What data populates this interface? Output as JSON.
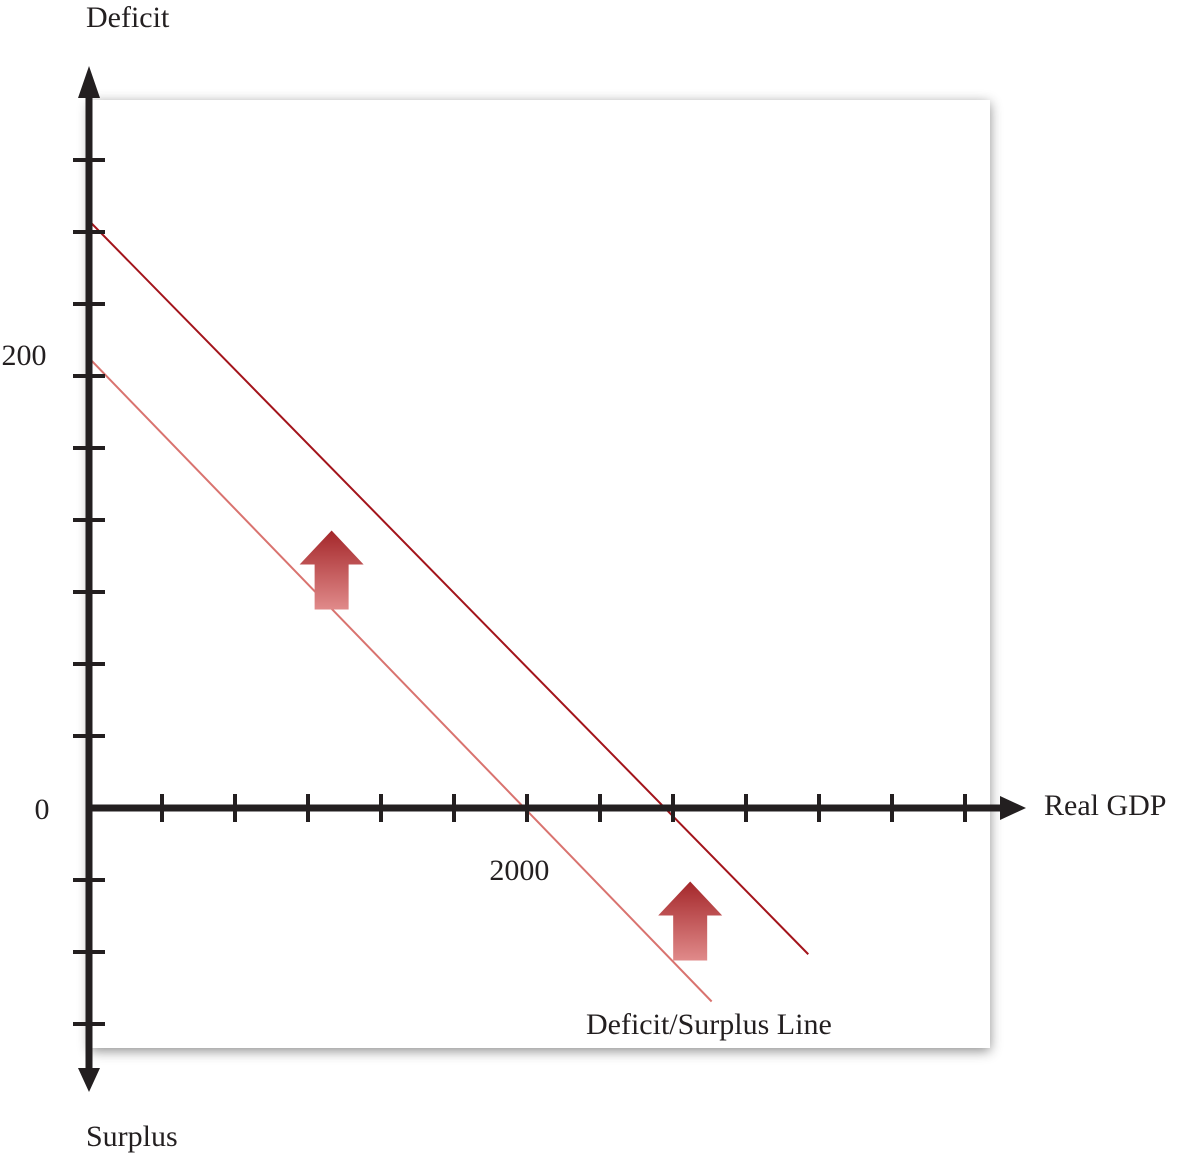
{
  "chart_data": {
    "type": "line",
    "ylabel_top": "Deficit",
    "ylabel_bottom": "Surplus",
    "xlabel": "Real GDP",
    "origin_label": "0",
    "y_tick_labels": [
      {
        "value": 200,
        "text": "200"
      }
    ],
    "x_tick_labels": [
      {
        "value": 2000,
        "text": "2000"
      }
    ],
    "x_tick_step": 340,
    "y_tick_step": 32,
    "xlim": [
      0,
      4200
    ],
    "ylim": [
      -120,
      320
    ],
    "series": [
      {
        "name": "Deficit/Surplus Line",
        "color": "#d9736f",
        "points": [
          [
            0,
            200
          ],
          [
            2900,
            -86
          ]
        ]
      },
      {
        "name": "",
        "color": "#a3141b",
        "points": [
          [
            0,
            261
          ],
          [
            3350,
            -65
          ]
        ]
      }
    ],
    "shift_arrows": [
      {
        "x": 1130,
        "y": 106,
        "direction": "up"
      },
      {
        "x": 2800,
        "y": -50,
        "direction": "up"
      }
    ],
    "arrow_colors": {
      "top": "#a4272a",
      "bottom": "#e08a8a"
    },
    "grid": false,
    "legend": "none"
  }
}
